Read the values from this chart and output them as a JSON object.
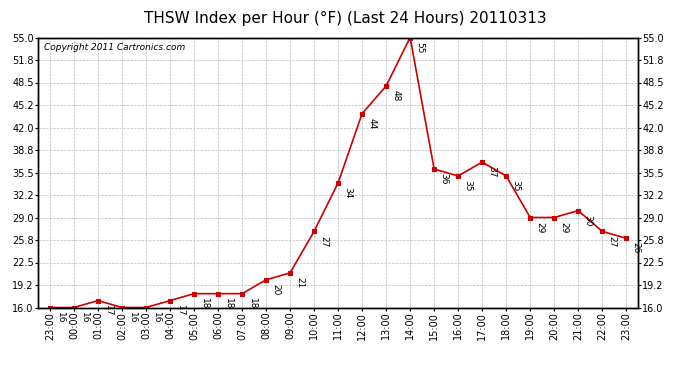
{
  "title": "THSW Index per Hour (°F) (Last 24 Hours) 20110313",
  "copyright": "Copyright 2011 Cartronics.com",
  "x_labels": [
    "23:00",
    "00:00",
    "01:00",
    "02:00",
    "03:00",
    "04:00",
    "05:00",
    "06:00",
    "07:00",
    "08:00",
    "09:00",
    "10:00",
    "11:00",
    "12:00",
    "13:00",
    "14:00",
    "15:00",
    "16:00",
    "17:00",
    "18:00",
    "19:00",
    "20:00",
    "21:00",
    "22:00",
    "23:00"
  ],
  "y_values": [
    16,
    16,
    17,
    16,
    16,
    17,
    18,
    18,
    18,
    20,
    21,
    27,
    34,
    44,
    48,
    55,
    36,
    35,
    37,
    35,
    29,
    29,
    30,
    27,
    26
  ],
  "ylim_min": 16.0,
  "ylim_max": 55.0,
  "ytick_values": [
    16.0,
    19.2,
    22.5,
    25.8,
    29.0,
    32.2,
    35.5,
    38.8,
    42.0,
    45.2,
    48.5,
    51.8,
    55.0
  ],
  "ytick_labels": [
    "16.0",
    "19.2",
    "22.5",
    "25.8",
    "29.0",
    "32.2",
    "35.5",
    "38.8",
    "42.0",
    "45.2",
    "48.5",
    "51.8",
    "55.0"
  ],
  "line_color": "#cc0000",
  "marker_color": "#cc0000",
  "bg_color": "#ffffff",
  "grid_color": "#bbbbbb",
  "title_fontsize": 11,
  "tick_fontsize": 7,
  "copyright_fontsize": 6.5,
  "label_fontsize": 6.5
}
